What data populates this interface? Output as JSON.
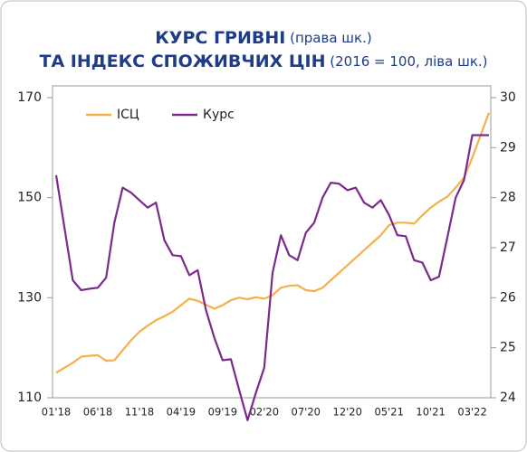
{
  "chart_data": {
    "type": "line",
    "title": [
      "КУРС ГРИВНІ",
      " (права шк.)",
      "ТА ІНДЕКС СПОЖИВЧИХ ЦІН",
      " (2016 = 100, ліва шк.)"
    ],
    "categories": [
      "01'18",
      null,
      null,
      null,
      null,
      "06'18",
      null,
      null,
      null,
      null,
      "11'18",
      null,
      null,
      null,
      null,
      "04'19",
      null,
      null,
      null,
      null,
      "09'19",
      null,
      null,
      null,
      null,
      "02'20",
      null,
      null,
      null,
      null,
      "07'20",
      null,
      null,
      null,
      null,
      "12'20",
      null,
      null,
      null,
      null,
      "05'21",
      null,
      null,
      null,
      null,
      "10'21",
      null,
      null,
      null,
      null,
      "03'22",
      null,
      null
    ],
    "series": [
      {
        "name": "ІСЦ",
        "color": "#f5b04a",
        "values": [
          115,
          116,
          117,
          118.2,
          118.4,
          118.5,
          117.4,
          117.5,
          119.5,
          121.5,
          123.2,
          124.4,
          125.5,
          126.3,
          127.2,
          128.5,
          129.8,
          129.4,
          128.6,
          127.8,
          128.5,
          129.5,
          130,
          129.7,
          130.1,
          129.8,
          130.5,
          132,
          132.4,
          132.5,
          131.5,
          131.3,
          132,
          133.5,
          135,
          136.5,
          138,
          139.5,
          141,
          142.5,
          144.5,
          145,
          145,
          144.8,
          146.5,
          148,
          149.2,
          150.2,
          152,
          154,
          158,
          162.5,
          167
        ]
      },
      {
        "name": "Курс",
        "color": "#7b2a8c",
        "axis": "y2",
        "values": [
          28.45,
          27.4,
          26.35,
          26.15,
          26.18,
          26.2,
          26.4,
          27.5,
          28.2,
          28.1,
          27.95,
          27.8,
          27.9,
          27.15,
          26.85,
          26.83,
          26.45,
          26.55,
          25.75,
          25.2,
          24.75,
          24.77,
          24.15,
          23.55,
          24.1,
          24.6,
          26.5,
          27.25,
          26.85,
          26.75,
          27.3,
          27.5,
          28,
          28.3,
          28.28,
          28.15,
          28.2,
          27.9,
          27.8,
          27.95,
          27.65,
          27.25,
          27.23,
          26.75,
          26.7,
          26.35,
          26.42,
          27.2,
          28,
          28.35,
          29.25,
          29.25,
          29.25
        ]
      }
    ],
    "ylim": [
      110,
      170
    ],
    "yticks": [
      110,
      130,
      150,
      170
    ],
    "y2lim": [
      24,
      30
    ],
    "y2ticks": [
      24,
      25,
      26,
      27,
      28,
      29,
      30
    ]
  }
}
